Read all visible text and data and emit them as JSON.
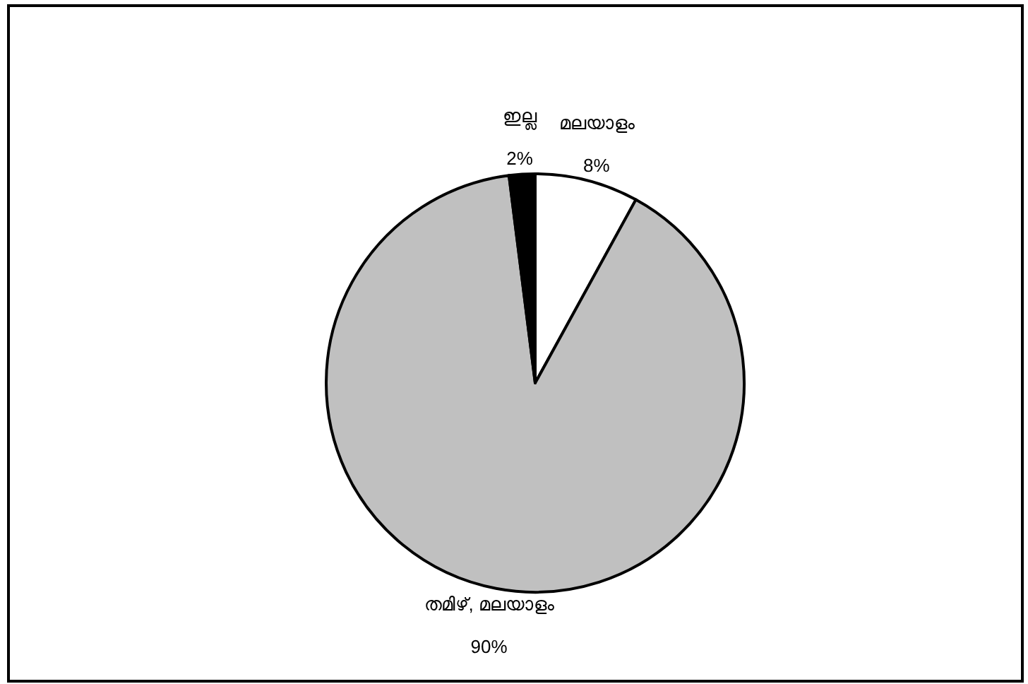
{
  "chart_data": {
    "type": "pie",
    "categories": [
      "മലയാളം",
      "തമിഴ്, മലയാളം",
      "ഇല്ല"
    ],
    "values": [
      8,
      90,
      2
    ],
    "colors": [
      "#ffffff",
      "#c0c0c0",
      "#000000"
    ],
    "value_labels": [
      "8%",
      "90%",
      "2%"
    ]
  }
}
